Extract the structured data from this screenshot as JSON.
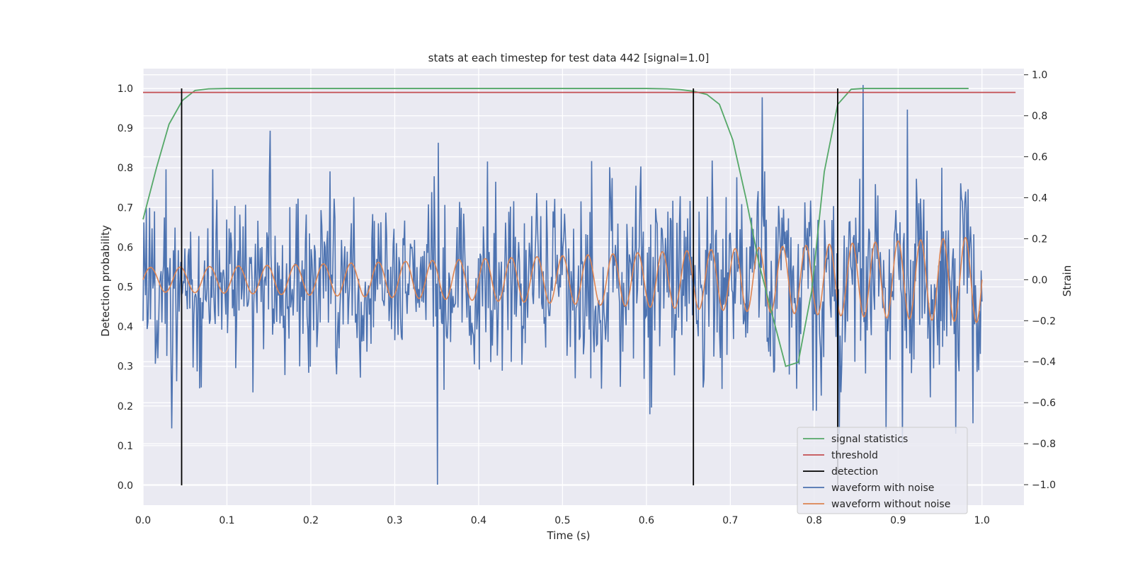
{
  "chart_data": {
    "type": "line",
    "title": "stats at each timestep for test data 442 [signal=1.0]",
    "xlabel": "Time (s)",
    "ylabel": "Detection probability",
    "y2label": "Strain",
    "xlim": [
      0.0,
      1.05
    ],
    "ylim": [
      -0.05,
      1.05
    ],
    "y2lim": [
      -1.1,
      1.03
    ],
    "xticks": [
      0.0,
      0.1,
      0.2,
      0.3,
      0.4,
      0.5,
      0.6,
      0.7,
      0.8,
      0.9,
      1.0
    ],
    "xtick_labels": [
      "0.0",
      "0.1",
      "0.2",
      "0.3",
      "0.4",
      "0.5",
      "0.6",
      "0.7",
      "0.8",
      "0.9",
      "1.0"
    ],
    "yticks": [
      0.0,
      0.1,
      0.2,
      0.3,
      0.4,
      0.5,
      0.6,
      0.7,
      0.8,
      0.9,
      1.0
    ],
    "ytick_labels": [
      "0.0",
      "0.1",
      "0.2",
      "0.3",
      "0.4",
      "0.5",
      "0.6",
      "0.7",
      "0.8",
      "0.9",
      "1.0"
    ],
    "y2ticks": [
      -1.0,
      -0.8,
      -0.6,
      -0.4,
      -0.2,
      0.0,
      0.2,
      0.4,
      0.6,
      0.8,
      1.0
    ],
    "y2tick_labels": [
      "−1.0",
      "−0.8",
      "−0.6",
      "−0.4",
      "−0.2",
      "0.0",
      "0.2",
      "0.4",
      "0.6",
      "0.8",
      "1.0"
    ],
    "grid": true,
    "legend_position": "lower-right",
    "series": [
      {
        "name": "signal statistics",
        "axis": "left",
        "color": "#55a868",
        "x": [
          0.0,
          0.016,
          0.031,
          0.047,
          0.062,
          0.078,
          0.1,
          0.2,
          0.3,
          0.4,
          0.5,
          0.6,
          0.625,
          0.641,
          0.656,
          0.672,
          0.687,
          0.703,
          0.719,
          0.734,
          0.75,
          0.766,
          0.781,
          0.797,
          0.812,
          0.828,
          0.844,
          0.859,
          0.875,
          0.9,
          0.95,
          0.984
        ],
        "y": [
          0.67,
          0.8,
          0.91,
          0.97,
          0.995,
          0.999,
          1.0,
          1.0,
          1.0,
          1.0,
          1.0,
          1.0,
          0.999,
          0.997,
          0.993,
          0.985,
          0.96,
          0.87,
          0.72,
          0.56,
          0.43,
          0.3,
          0.31,
          0.49,
          0.79,
          0.96,
          0.998,
          1.0,
          1.0,
          1.0,
          1.0,
          1.0
        ]
      },
      {
        "name": "threshold",
        "axis": "left",
        "color": "#c44e52",
        "x": [
          0.0,
          1.04
        ],
        "y": [
          0.99,
          0.99
        ]
      },
      {
        "name": "waveform with noise",
        "axis": "right",
        "color": "#4c72b0",
        "x_start": 0.0,
        "x_end": 1.0,
        "noise_amplitude": 0.22,
        "spike_values": [
          [
            0.351,
            -1.0
          ],
          [
            0.738,
            0.89
          ],
          [
            0.858,
            0.95
          ],
          [
            0.911,
            0.83
          ],
          [
            0.905,
            -0.8
          ]
        ]
      },
      {
        "name": "waveform without noise",
        "axis": "right",
        "color": "#dd8452",
        "x_start": 0.0,
        "x_end": 1.0,
        "amplitude_start": 0.06,
        "amplitude_end": 0.21,
        "frequency_start": 28,
        "frequency_end": 38
      }
    ],
    "detection": {
      "name": "detection",
      "color": "#000000",
      "x": [
        0.046,
        0.656,
        0.828
      ],
      "y_range": [
        0.0,
        1.0
      ]
    }
  }
}
